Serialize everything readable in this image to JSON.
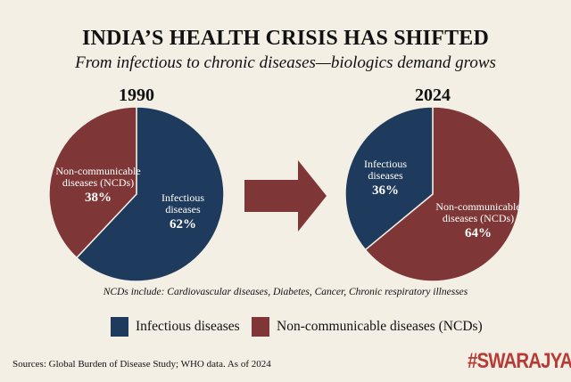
{
  "title": "INDIA’S HEALTH CRISIS HAS SHIFTED",
  "subtitle": "From infectious to chronic diseases—biologics demand grows",
  "colors": {
    "infectious": "#1e3a5c",
    "ncd": "#7e3636",
    "arrow": "#7e3636",
    "background": "#f3efe4",
    "brand": "#b83a35"
  },
  "chart_data": [
    {
      "type": "pie",
      "title": "1990",
      "slices": [
        {
          "name": "Infectious diseases",
          "label": [
            "Infectious",
            "diseases"
          ],
          "value": 62,
          "value_label": "62%"
        },
        {
          "name": "Non-communicable diseases (NCDs)",
          "label": [
            "Non-communicable",
            "diseases (NCDs)"
          ],
          "value": 38,
          "value_label": "38%"
        }
      ]
    },
    {
      "type": "pie",
      "title": "2024",
      "slices": [
        {
          "name": "Non-communicable diseases (NCDs)",
          "label": [
            "Non-communicable",
            "diseases (NCDs)"
          ],
          "value": 64,
          "value_label": "64%"
        },
        {
          "name": "Infectious diseases",
          "label": [
            "Infectious",
            "diseases"
          ],
          "value": 36,
          "value_label": "36%"
        }
      ]
    }
  ],
  "arrow_icon": "right-arrow",
  "note": "NCDs include: Cardiovascular diseases, Diabetes, Cancer, Chronic respiratory illnesses",
  "legend": [
    {
      "label": "Infectious diseases"
    },
    {
      "label": "Non-communicable diseases (NCDs)"
    }
  ],
  "source": "Sources: Global Burden of Disease Study; WHO data. As of 2024",
  "brand": "#SWARAJYA"
}
